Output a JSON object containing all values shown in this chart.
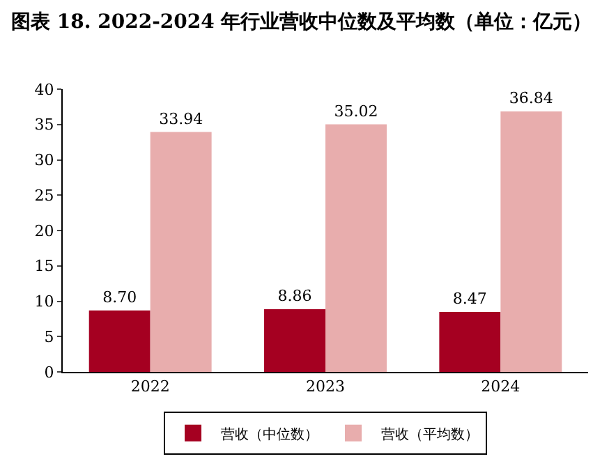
{
  "chart_data": {
    "type": "bar",
    "title": "图表 18. 2022-2024 年行业营收中位数及平均数（单位：亿元）",
    "categories": [
      "2022",
      "2023",
      "2024"
    ],
    "series": [
      {
        "name": "营收（中位数）",
        "color": "#a50021",
        "values": [
          8.7,
          8.86,
          8.47
        ],
        "value_labels": [
          "8.70",
          "8.86",
          "8.47"
        ]
      },
      {
        "name": "营收（平均数）",
        "color": "#e8adad",
        "values": [
          33.94,
          35.02,
          36.84
        ],
        "value_labels": [
          "33.94",
          "35.02",
          "36.84"
        ]
      }
    ],
    "ylim": [
      0,
      40
    ],
    "yticks": [
      0,
      5,
      10,
      15,
      20,
      25,
      30,
      35,
      40
    ],
    "grid": false,
    "legend": "bottom"
  }
}
